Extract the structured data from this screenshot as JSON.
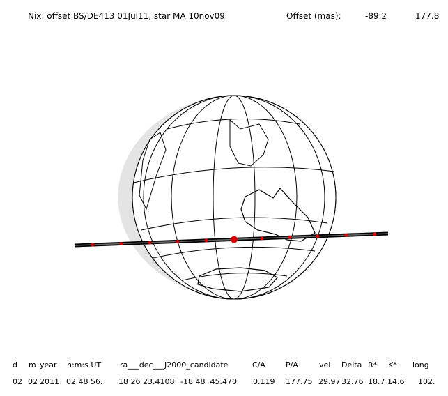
{
  "header": {
    "title": "Nix: offset BS/DE413 01Jul11, star MA 10nov09",
    "offset_label": "Offset (mas):",
    "offset_values": [
      "-89.2",
      "177.8"
    ]
  },
  "table": {
    "headers": [
      "d",
      "m",
      "year",
      "h:m:s UT",
      "ra___dec___J2000_candidate",
      "C/A",
      "P/A",
      "vel",
      "Delta",
      "R*",
      "K*",
      "long"
    ],
    "rows": [
      [
        "02",
        "02",
        "2011",
        "02 48 56.",
        "18 26 23.4108",
        "-18 48  45.470",
        "0.119",
        "177.75",
        "29.97",
        "32.76",
        "18.7",
        "14.6",
        "102."
      ]
    ]
  }
}
